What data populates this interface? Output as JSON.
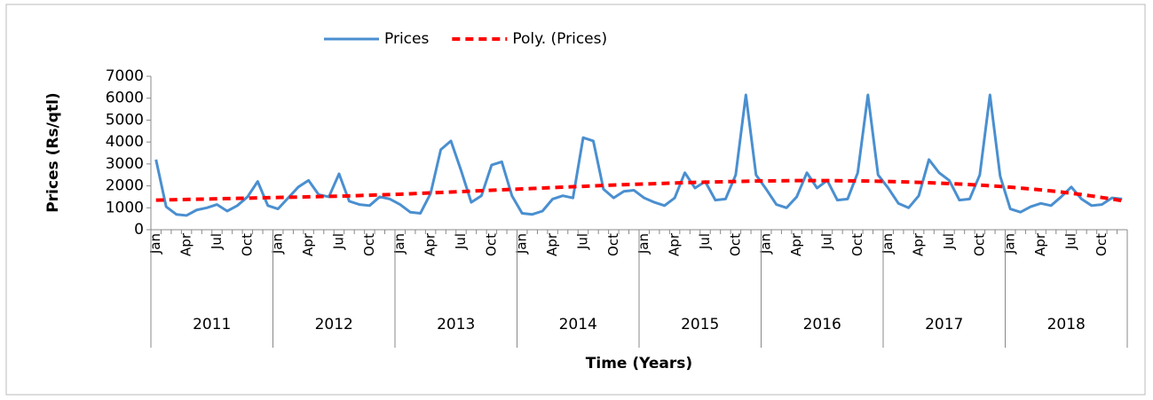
{
  "chart_data": {
    "type": "line",
    "x_label": "Time (Years)",
    "y_label": "Prices (Rs/qtl)",
    "categories": [
      "Jan",
      null,
      null,
      "Apr",
      null,
      null,
      "Jul",
      null,
      null,
      "Oct",
      null,
      null,
      "Jan",
      null,
      null,
      "Apr",
      null,
      null,
      "Jul",
      null,
      null,
      "Oct",
      null,
      null,
      "Jan",
      null,
      null,
      "Apr",
      null,
      null,
      "Jul",
      null,
      null,
      "Oct",
      null,
      null,
      "Jan",
      null,
      null,
      "Apr",
      null,
      null,
      "Jul",
      null,
      null,
      "Oct",
      null,
      null,
      "Jan",
      null,
      null,
      "Apr",
      null,
      null,
      "Jul",
      null,
      null,
      "Oct",
      null,
      null,
      "Jan",
      null,
      null,
      "Apr",
      null,
      null,
      "Jul",
      null,
      null,
      "Oct",
      null,
      null,
      "Jan",
      null,
      null,
      "Apr",
      null,
      null,
      "Jul",
      null,
      null,
      "Oct",
      null,
      null,
      "Jan",
      null,
      null,
      "Apr",
      null,
      null,
      "Jul",
      null,
      null,
      "Oct",
      null,
      null
    ],
    "groups": [
      "2011",
      "2012",
      "2013",
      "2014",
      "2015",
      "2016",
      "2017",
      "2018"
    ],
    "series": [
      {
        "name": "Prices",
        "color": "#4a8fd0",
        "line_style": "solid",
        "values": [
          3200,
          1050,
          700,
          650,
          900,
          1000,
          1150,
          850,
          1100,
          1500,
          2200,
          1100,
          950,
          1450,
          1950,
          2250,
          1600,
          1500,
          2550,
          1300,
          1150,
          1100,
          1500,
          1400,
          1150,
          800,
          750,
          1650,
          3650,
          4050,
          2700,
          1250,
          1550,
          2950,
          3100,
          1550,
          750,
          700,
          850,
          1400,
          1550,
          1450,
          4200,
          4050,
          1850,
          1450,
          1750,
          1800,
          1450,
          1250,
          1100,
          1450,
          2600,
          1900,
          2200,
          1350,
          1400,
          2500,
          6150,
          2500,
          1850,
          1150,
          1000,
          1500,
          2600,
          1900,
          2250,
          1350,
          1400,
          2600,
          6150,
          2500,
          1900,
          1200,
          1000,
          1550,
          3200,
          2600,
          2250,
          1350,
          1400,
          2500,
          6150,
          2450,
          950,
          800,
          1050,
          1200,
          1100,
          1500,
          1950,
          1400,
          1100,
          1150,
          1450,
          1400
        ]
      },
      {
        "name": "Poly. (Prices)",
        "color": "#ff0000",
        "line_style": "dashed",
        "values": [
          1350,
          1360,
          1370,
          1380,
          1390,
          1400,
          1410,
          1420,
          1430,
          1440,
          1450,
          1460,
          1470,
          1480,
          1490,
          1500,
          1510,
          1520,
          1530,
          1545,
          1560,
          1575,
          1590,
          1605,
          1620,
          1640,
          1660,
          1680,
          1700,
          1720,
          1740,
          1760,
          1780,
          1800,
          1820,
          1840,
          1860,
          1880,
          1900,
          1920,
          1940,
          1960,
          1980,
          2000,
          2020,
          2040,
          2055,
          2070,
          2085,
          2100,
          2115,
          2130,
          2145,
          2160,
          2170,
          2180,
          2190,
          2200,
          2210,
          2220,
          2225,
          2230,
          2235,
          2240,
          2240,
          2240,
          2240,
          2235,
          2230,
          2225,
          2220,
          2210,
          2200,
          2190,
          2175,
          2160,
          2145,
          2125,
          2105,
          2085,
          2060,
          2035,
          2005,
          1975,
          1940,
          1900,
          1860,
          1815,
          1770,
          1720,
          1665,
          1605,
          1540,
          1470,
          1400,
          1320
        ]
      }
    ],
    "ylim": [
      0,
      7000
    ],
    "yticks": [
      0,
      1000,
      2000,
      3000,
      4000,
      5000,
      6000,
      7000
    ],
    "legend": "top"
  }
}
